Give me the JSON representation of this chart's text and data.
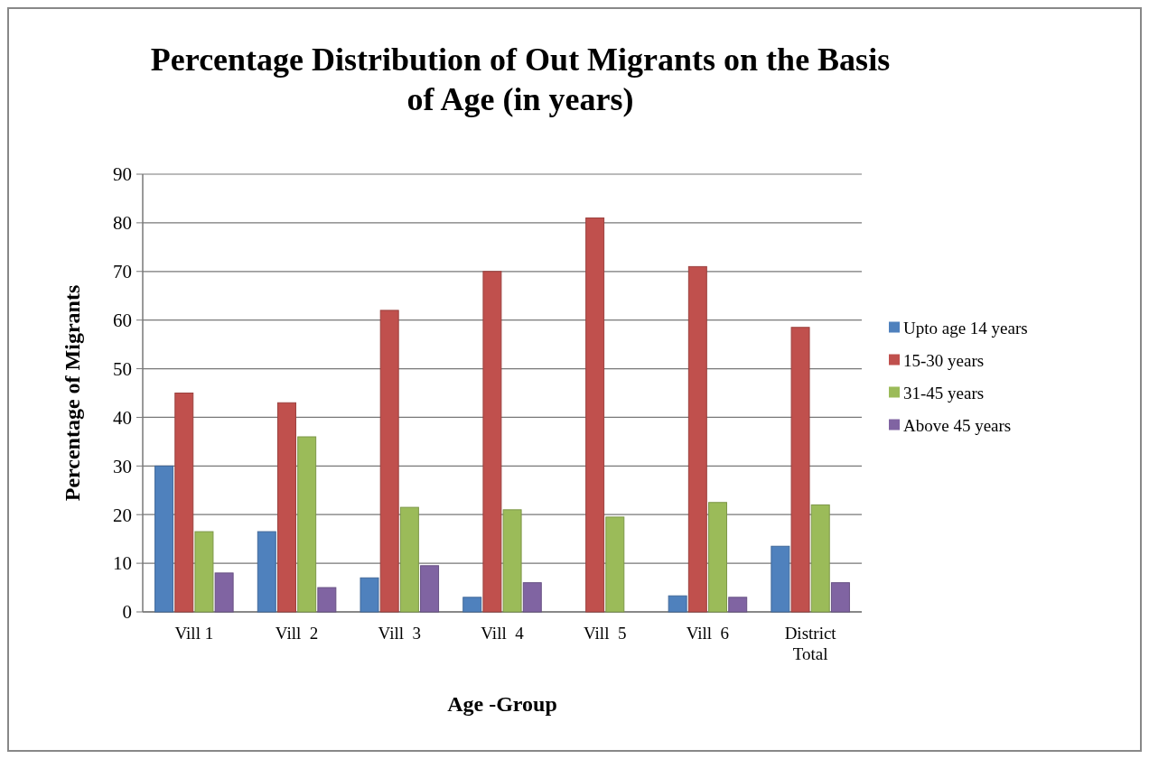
{
  "chart_data": {
    "type": "bar",
    "title": "Percentage Distribution of Out Migrants on the Basis of Age (in years)",
    "xlabel": "Age -Group",
    "ylabel": "Percentage of Migrants",
    "categories": [
      "Vill 1",
      "Vill  2",
      "Vill  3",
      "Vill  4",
      "Vill  5",
      "Vill  6",
      "District Total"
    ],
    "series": [
      {
        "name": "Upto age 14 years",
        "color": "#4f81bd",
        "values": [
          30,
          16.5,
          7,
          3,
          0,
          3.3,
          13.5
        ]
      },
      {
        "name": "15-30 years",
        "color": "#c0504d",
        "values": [
          45,
          43,
          62,
          70,
          81,
          71,
          58.5
        ]
      },
      {
        "name": "31-45 years",
        "color": "#9bbb59",
        "values": [
          16.5,
          36,
          21.5,
          21,
          19.5,
          22.5,
          22
        ]
      },
      {
        "name": "Above 45 years",
        "color": "#8064a2",
        "values": [
          8,
          5,
          9.5,
          6,
          0,
          3,
          6
        ]
      }
    ],
    "ylim": [
      0,
      90
    ],
    "yticks": [
      0,
      10,
      20,
      30,
      40,
      50,
      60,
      70,
      80,
      90
    ],
    "grid": "y",
    "legend": "right"
  }
}
